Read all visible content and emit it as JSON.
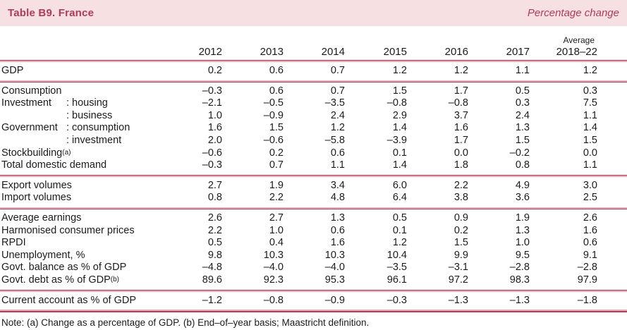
{
  "title": "Table B9. France",
  "unit_label": "Percentage change",
  "colors": {
    "accent": "#b13a56",
    "band_background": "#f6e0e1",
    "rule_dark": "#b43c58",
    "rule_pink": "#e9aab4"
  },
  "columns": [
    "2012",
    "2013",
    "2014",
    "2015",
    "2016",
    "2017"
  ],
  "last_column": {
    "line1": "Average",
    "line2": "2018–22"
  },
  "sections": [
    {
      "name": "gdp",
      "rows": [
        {
          "label": "GDP",
          "values": [
            "0.2",
            "0.6",
            "0.7",
            "1.2",
            "1.2",
            "1.1",
            "1.2"
          ]
        }
      ]
    },
    {
      "name": "domestic-demand",
      "rows": [
        {
          "label": "Consumption",
          "values": [
            "–0.3",
            "0.6",
            "0.7",
            "1.5",
            "1.7",
            "0.5",
            "0.3"
          ]
        },
        {
          "prefix": "Investment",
          "label": ": housing",
          "values": [
            "–2.1",
            "–0.5",
            "–3.5",
            "–0.8",
            "–0.8",
            "0.3",
            "7.5"
          ]
        },
        {
          "prefix": "",
          "label": ": business",
          "values": [
            "1.0",
            "–0.9",
            "2.4",
            "2.9",
            "3.7",
            "2.4",
            "1.1"
          ]
        },
        {
          "prefix": "Government",
          "label": ": consumption",
          "values": [
            "1.6",
            "1.5",
            "1.2",
            "1.4",
            "1.6",
            "1.3",
            "1.4"
          ]
        },
        {
          "prefix": "",
          "label": ": investment",
          "values": [
            "2.0",
            "–0.6",
            "–5.8",
            "–3.9",
            "1.7",
            "1.5",
            "1.5"
          ]
        },
        {
          "label": "Stockbuilding",
          "sup": "(a)",
          "values": [
            "–0.6",
            "0.2",
            "0.6",
            "0.1",
            "0.0",
            "–0.2",
            "0.0"
          ]
        },
        {
          "label": "Total domestic demand",
          "values": [
            "–0.3",
            "0.7",
            "1.1",
            "1.4",
            "1.8",
            "0.8",
            "1.1"
          ]
        }
      ]
    },
    {
      "name": "trade",
      "rows": [
        {
          "label": "Export volumes",
          "values": [
            "2.7",
            "1.9",
            "3.4",
            "6.0",
            "2.2",
            "4.9",
            "3.0"
          ]
        },
        {
          "label": "Import volumes",
          "values": [
            "0.8",
            "2.2",
            "4.8",
            "6.4",
            "3.8",
            "3.6",
            "2.5"
          ]
        }
      ]
    },
    {
      "name": "prices-and-fiscal",
      "rows": [
        {
          "label": "Average earnings",
          "values": [
            "2.6",
            "2.7",
            "1.3",
            "0.5",
            "0.9",
            "1.9",
            "2.6"
          ]
        },
        {
          "label": "Harmonised consumer prices",
          "values": [
            "2.2",
            "1.0",
            "0.6",
            "0.1",
            "0.2",
            "1.3",
            "1.6"
          ]
        },
        {
          "label": "RPDI",
          "values": [
            "0.5",
            "0.4",
            "1.6",
            "1.2",
            "1.5",
            "1.0",
            "0.6"
          ]
        },
        {
          "label": "Unemployment, %",
          "values": [
            "9.8",
            "10.3",
            "10.3",
            "10.4",
            "9.9",
            "9.5",
            "9.1"
          ]
        },
        {
          "label": "Govt. balance as % of GDP",
          "values": [
            "–4.8",
            "–4.0",
            "–4.0",
            "–3.5",
            "–3.1",
            "–2.8",
            "–2.8"
          ]
        },
        {
          "label": "Govt. debt as % of GDP",
          "sup": "(b)",
          "values": [
            "89.6",
            "92.3",
            "95.3",
            "96.1",
            "97.2",
            "98.3",
            "97.9"
          ]
        }
      ]
    },
    {
      "name": "current-account",
      "rows": [
        {
          "label": "Current account as % of GDP",
          "values": [
            "–1.2",
            "–0.8",
            "–0.9",
            "–0.3",
            "–1.3",
            "–1.3",
            "–1.8"
          ]
        }
      ]
    }
  ],
  "note": "Note: (a) Change as a percentage of GDP. (b) End–of–year basis; Maastricht definition."
}
